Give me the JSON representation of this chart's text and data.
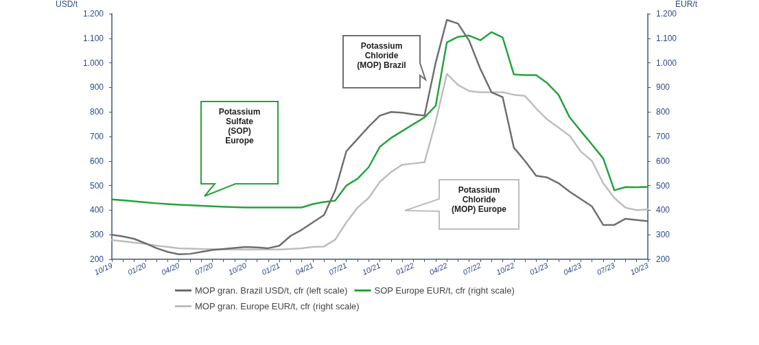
{
  "chart_data": {
    "type": "line",
    "ylabel": "USD/t",
    "y2label": "EUR/t",
    "categories": [
      "10/19",
      null,
      null,
      "01/20",
      null,
      null,
      "04/20",
      null,
      null,
      "07/20",
      null,
      null,
      "10/20",
      null,
      null,
      "01/21",
      null,
      null,
      "04/21",
      null,
      null,
      "07/21",
      null,
      null,
      "10/21",
      null,
      null,
      "01/22",
      null,
      null,
      "04/22",
      null,
      null,
      "07/22",
      null,
      null,
      "10/22",
      null,
      null,
      "01/23",
      null,
      null,
      "04/23",
      null,
      null,
      "07/23",
      null,
      null,
      "10/23"
    ],
    "series": [
      {
        "name": "MOP gran. Brazil USD/t, cfr (left scale)",
        "color": "#6e6e6e",
        "axis": "y",
        "values": [
          300,
          293,
          283,
          265,
          245,
          230,
          220,
          222,
          230,
          238,
          242,
          246,
          250,
          248,
          245,
          255,
          295,
          320,
          350,
          380,
          480,
          640,
          690,
          740,
          785,
          800,
          797,
          790,
          785,
          1000,
          1175,
          1160,
          1090,
          975,
          880,
          860,
          655,
          600,
          540,
          533,
          510,
          475,
          445,
          415,
          340,
          340,
          365,
          360,
          355
        ]
      },
      {
        "name": "SOP Europe EUR/t, cfr (right scale)",
        "color": "#22a33a",
        "axis": "y2",
        "values": [
          444,
          440,
          436,
          432,
          428,
          425,
          422,
          420,
          418,
          416,
          414,
          412,
          411,
          411,
          411,
          411,
          411,
          411,
          425,
          433,
          439,
          500,
          528,
          575,
          658,
          694,
          722,
          750,
          778,
          825,
          1083,
          1106,
          1111,
          1092,
          1125,
          1103,
          953,
          950,
          950,
          917,
          870,
          778,
          722,
          667,
          611,
          481,
          494,
          493,
          495
        ]
      },
      {
        "name": "MOP gran. Europe EUR/t, cfr (right scale)",
        "color": "#bdbdbd",
        "axis": "y2",
        "values": [
          278,
          273,
          268,
          263,
          255,
          250,
          245,
          243,
          242,
          241,
          240,
          240,
          240,
          240,
          240,
          240,
          242,
          245,
          250,
          252,
          280,
          350,
          410,
          450,
          515,
          555,
          585,
          590,
          595,
          760,
          955,
          910,
          885,
          880,
          880,
          880,
          870,
          865,
          814,
          769,
          736,
          703,
          639,
          600,
          510,
          450,
          410,
          400,
          403
        ]
      }
    ],
    "ylim": [
      200,
      1200
    ],
    "yticks": [
      200,
      300,
      400,
      500,
      600,
      700,
      800,
      900,
      {
        "value": 1000,
        "label": "1.000"
      },
      {
        "value": 1100,
        "label": "1.100"
      },
      {
        "value": 1200,
        "label": "1.200"
      }
    ],
    "y2lim": [
      200,
      1200
    ],
    "y2ticks": [
      200,
      300,
      400,
      500,
      600,
      700,
      800,
      900,
      {
        "value": 1000,
        "label": "1.000"
      },
      {
        "value": 1100,
        "label": "1.100"
      },
      {
        "value": 1200,
        "label": "1.200"
      }
    ],
    "annotations": [
      "Potassium\nSulfate\n(SOP)\nEurope",
      "Potassium\nChloride\n(MOP) Brazil",
      "Potassium\nChloride\n(MOP) Europe"
    ],
    "legend": "bottom",
    "marker": "none",
    "line_style": "solid"
  }
}
